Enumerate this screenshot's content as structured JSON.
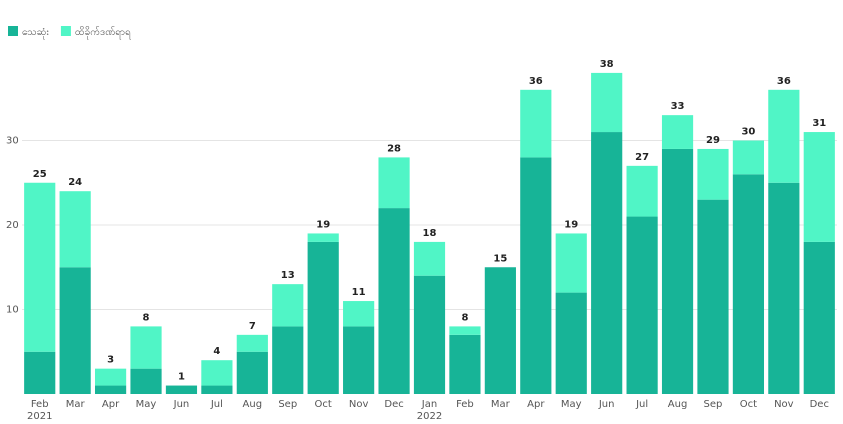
{
  "chart_data": {
    "type": "stacked-bar",
    "categories": [
      "Feb",
      "Mar",
      "Apr",
      "May",
      "Jun",
      "Jul",
      "Aug",
      "Sep",
      "Oct",
      "Nov",
      "Dec",
      "Jan",
      "Feb",
      "Mar",
      "Apr",
      "May",
      "Jun",
      "Jul",
      "Aug",
      "Sep",
      "Oct",
      "Nov",
      "Dec"
    ],
    "year_labels": [
      "2021",
      null,
      null,
      null,
      null,
      null,
      null,
      null,
      null,
      null,
      null,
      "2022",
      null,
      null,
      null,
      null,
      null,
      null,
      null,
      null,
      null,
      null,
      null
    ],
    "series": [
      {
        "name": "သေဆုံး",
        "color": "#17b497",
        "values": [
          5,
          15,
          1,
          3,
          1,
          1,
          5,
          8,
          18,
          8,
          22,
          14,
          7,
          15,
          28,
          12,
          31,
          21,
          29,
          23,
          26,
          25,
          18
        ]
      },
      {
        "name": "ထိခိုက်ဒဏ်ရာရ",
        "color": "#50f5c6",
        "values": [
          20,
          9,
          2,
          5,
          0,
          3,
          2,
          5,
          1,
          3,
          6,
          4,
          1,
          0,
          8,
          7,
          7,
          6,
          4,
          6,
          4,
          11,
          13
        ]
      }
    ],
    "totals": [
      25,
      24,
      3,
      8,
      1,
      4,
      7,
      13,
      19,
      11,
      28,
      18,
      8,
      15,
      36,
      19,
      38,
      27,
      33,
      29,
      30,
      36,
      31
    ],
    "ylim": [
      0,
      40
    ],
    "yticks": [
      10,
      20,
      30
    ],
    "grid": true
  }
}
